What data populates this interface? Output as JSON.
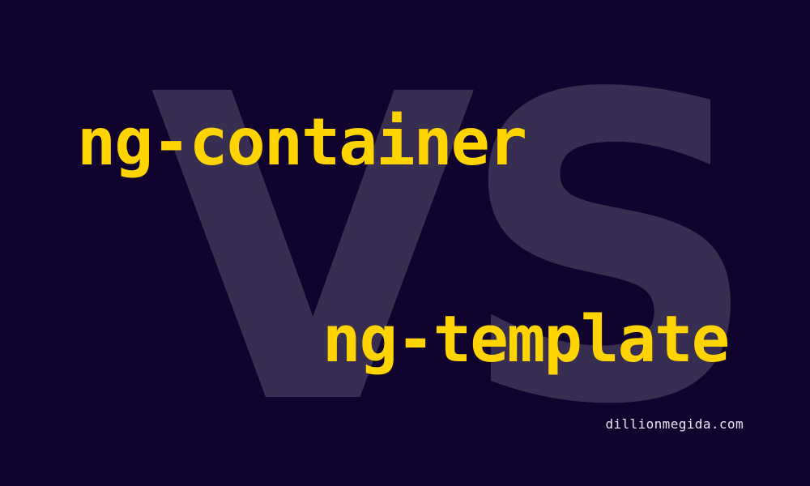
{
  "banner": {
    "background_word": "VS",
    "term_top": "ng-container",
    "term_bottom": "ng-template",
    "site_url": "dillionmegida.com",
    "colors": {
      "background": "#10042f",
      "accent": "#ffd400",
      "watermark": "#382e52",
      "footer_text": "#e9e6f2"
    }
  }
}
